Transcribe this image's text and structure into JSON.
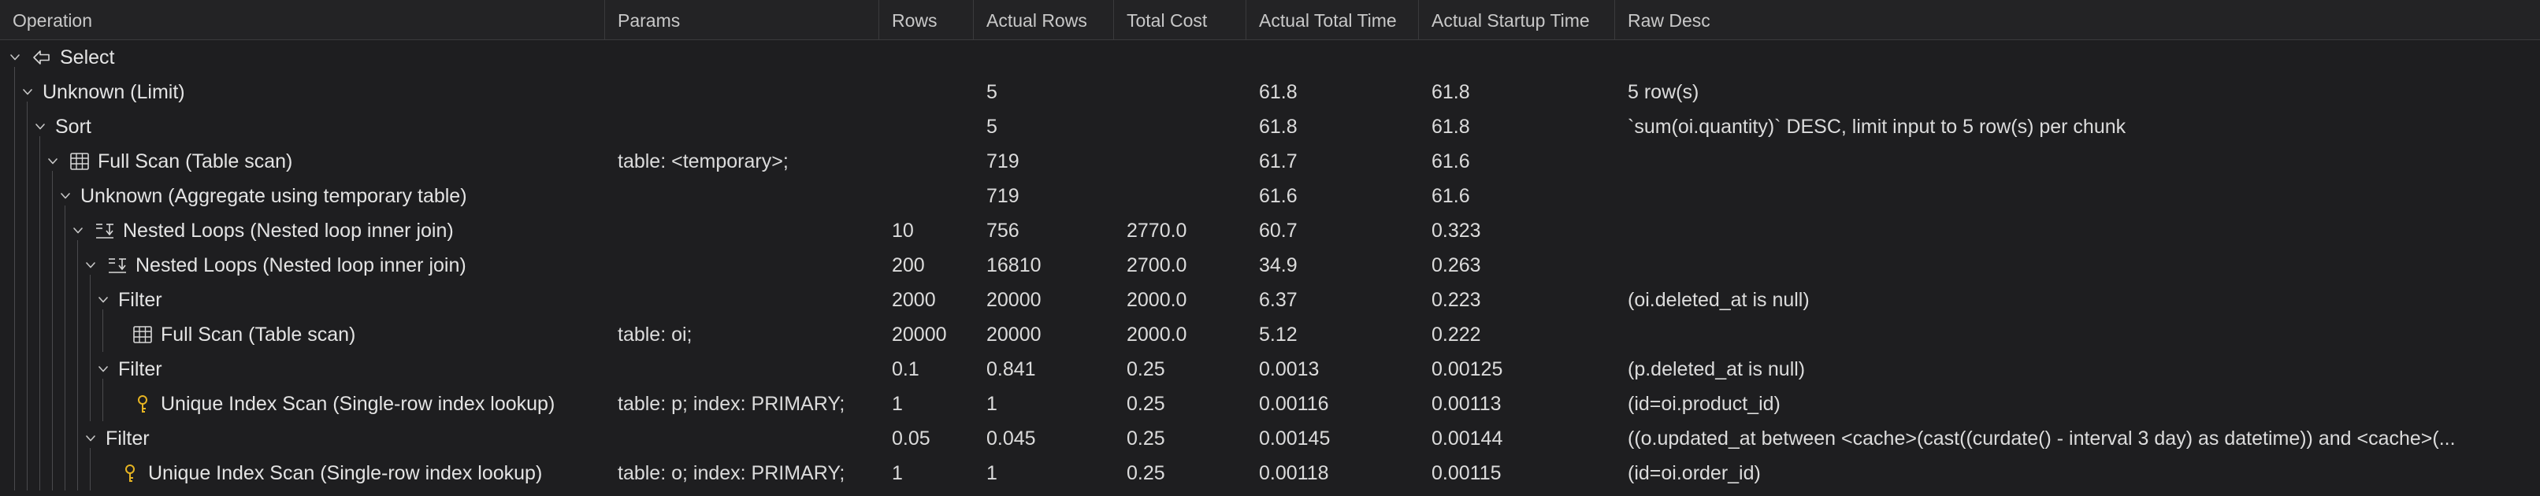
{
  "columns": [
    "Operation",
    "Params",
    "Rows",
    "Actual Rows",
    "Total Cost",
    "Actual Total Time",
    "Actual Startup Time",
    "Raw Desc"
  ],
  "rows": [
    {
      "depth": 0,
      "icon": "arrow-left-icon",
      "label": "Select",
      "params": "",
      "rows": "",
      "actual_rows": "",
      "total_cost": "",
      "actual_total_time": "",
      "actual_startup_time": "",
      "raw_desc": ""
    },
    {
      "depth": 1,
      "icon": "",
      "label": "Unknown (Limit)",
      "params": "",
      "rows": "",
      "actual_rows": "5",
      "total_cost": "",
      "actual_total_time": "61.8",
      "actual_startup_time": "61.8",
      "raw_desc": "5 row(s)"
    },
    {
      "depth": 2,
      "icon": "",
      "label": "Sort",
      "params": "",
      "rows": "",
      "actual_rows": "5",
      "total_cost": "",
      "actual_total_time": "61.8",
      "actual_startup_time": "61.8",
      "raw_desc": "`sum(oi.quantity)` DESC, limit input to 5 row(s) per chunk"
    },
    {
      "depth": 3,
      "icon": "table-icon",
      "label": "Full Scan (Table scan)",
      "params": "table: <temporary>;",
      "rows": "",
      "actual_rows": "719",
      "total_cost": "",
      "actual_total_time": "61.7",
      "actual_startup_time": "61.6",
      "raw_desc": ""
    },
    {
      "depth": 4,
      "icon": "",
      "label": "Unknown (Aggregate using temporary table)",
      "params": "",
      "rows": "",
      "actual_rows": "719",
      "total_cost": "",
      "actual_total_time": "61.6",
      "actual_startup_time": "61.6",
      "raw_desc": ""
    },
    {
      "depth": 5,
      "icon": "nested-loop-icon",
      "label": "Nested Loops (Nested loop inner join)",
      "params": "",
      "rows": "10",
      "actual_rows": "756",
      "total_cost": "2770.0",
      "actual_total_time": "60.7",
      "actual_startup_time": "0.323",
      "raw_desc": ""
    },
    {
      "depth": 6,
      "icon": "nested-loop-icon",
      "label": "Nested Loops (Nested loop inner join)",
      "params": "",
      "rows": "200",
      "actual_rows": "16810",
      "total_cost": "2700.0",
      "actual_total_time": "34.9",
      "actual_startup_time": "0.263",
      "raw_desc": ""
    },
    {
      "depth": 7,
      "icon": "",
      "label": "Filter",
      "params": "",
      "rows": "2000",
      "actual_rows": "20000",
      "total_cost": "2000.0",
      "actual_total_time": "6.37",
      "actual_startup_time": "0.223",
      "raw_desc": "(oi.deleted_at is null)"
    },
    {
      "depth": 8,
      "icon": "table-icon",
      "label": "Full Scan (Table scan)",
      "params": "table: oi;",
      "rows": "20000",
      "actual_rows": "20000",
      "total_cost": "2000.0",
      "actual_total_time": "5.12",
      "actual_startup_time": "0.222",
      "raw_desc": ""
    },
    {
      "depth": 7,
      "icon": "",
      "label": "Filter",
      "params": "",
      "rows": "0.1",
      "actual_rows": "0.841",
      "total_cost": "0.25",
      "actual_total_time": "0.0013",
      "actual_startup_time": "0.00125",
      "raw_desc": "(p.deleted_at is null)"
    },
    {
      "depth": 8,
      "icon": "key-icon",
      "label": "Unique Index Scan (Single-row index lookup)",
      "params": "table: p; index: PRIMARY;",
      "rows": "1",
      "actual_rows": "1",
      "total_cost": "0.25",
      "actual_total_time": "0.00116",
      "actual_startup_time": "0.00113",
      "raw_desc": "(id=oi.product_id)"
    },
    {
      "depth": 6,
      "icon": "",
      "label": "Filter",
      "params": "",
      "rows": "0.05",
      "actual_rows": "0.045",
      "total_cost": "0.25",
      "actual_total_time": "0.00145",
      "actual_startup_time": "0.00144",
      "raw_desc": "((o.updated_at between <cache>(cast((curdate() - interval 3 day) as datetime)) and <cache>(..."
    },
    {
      "depth": 7,
      "icon": "key-icon",
      "label": "Unique Index Scan (Single-row index lookup)",
      "params": "table: o; index: PRIMARY;",
      "rows": "1",
      "actual_rows": "1",
      "total_cost": "0.25",
      "actual_total_time": "0.00118",
      "actual_startup_time": "0.00115",
      "raw_desc": "(id=oi.order_id)"
    }
  ],
  "colors": {
    "background": "#1e1e20",
    "header": "#232325",
    "text": "#dcdcdc",
    "key_icon": "#e6b422",
    "guide": "#4a4a4d"
  }
}
